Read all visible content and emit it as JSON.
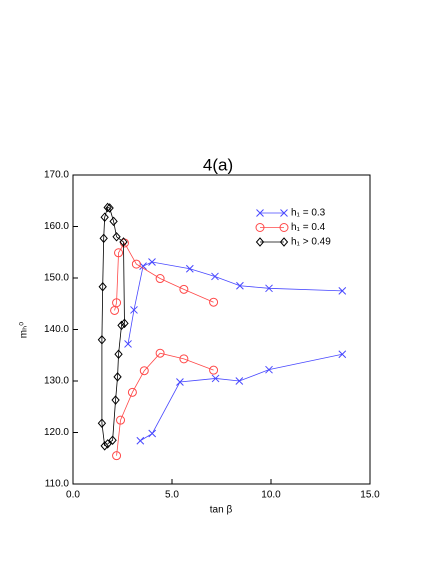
{
  "chart_data": {
    "type": "line",
    "title": "4(a)",
    "xlabel": "tan β",
    "ylabel": "mₕ⁰",
    "xlim": [
      0,
      15
    ],
    "ylim": [
      110,
      170
    ],
    "xticks": [
      {
        "value": 0,
        "label": "0.0"
      },
      {
        "value": 5,
        "label": "5.0"
      },
      {
        "value": 10,
        "label": "10.0"
      },
      {
        "value": 15,
        "label": "15.0"
      }
    ],
    "yticks": [
      {
        "value": 110,
        "label": "110.0"
      },
      {
        "value": 120,
        "label": "120.0"
      },
      {
        "value": 130,
        "label": "130.0"
      },
      {
        "value": 140,
        "label": "140.0"
      },
      {
        "value": 150,
        "label": "150.0"
      },
      {
        "value": 160,
        "label": "160.0"
      },
      {
        "value": 170,
        "label": "170.0"
      }
    ],
    "legend": "upper right",
    "series": [
      {
        "name": "h₁ = 0.3",
        "color": "#4848ff",
        "marker": "x",
        "x": [
          2.78,
          3.08,
          3.54,
          3.99,
          5.9,
          7.17,
          8.43,
          9.9,
          13.6,
          null,
          3.4,
          4.0,
          5.4,
          7.2,
          8.4,
          9.9,
          13.6
        ],
        "values": [
          137.2,
          143.8,
          152.3,
          153.1,
          151.8,
          150.3,
          148.5,
          148.0,
          147.5,
          null,
          118.4,
          119.8,
          129.8,
          130.5,
          130.0,
          132.2,
          135.2
        ]
      },
      {
        "name": "h₁ = 0.4",
        "color": "#ff4848",
        "marker": "o",
        "x": [
          2.1,
          2.2,
          2.3,
          2.6,
          3.2,
          4.4,
          5.6,
          7.1,
          null,
          2.2,
          2.4,
          3.0,
          3.6,
          4.4,
          5.6,
          7.1
        ],
        "values": [
          143.7,
          145.2,
          154.9,
          156.8,
          152.7,
          149.9,
          147.8,
          145.3,
          null,
          115.5,
          122.4,
          127.8,
          132.0,
          135.4,
          134.3,
          132.1
        ]
      },
      {
        "name": "h₁ > 0.49",
        "color": "#000000",
        "marker": "d",
        "x": [
          1.6,
          1.46,
          1.46,
          1.5,
          1.55,
          1.6,
          1.75,
          1.85,
          2.05,
          2.2,
          2.55,
          2.6,
          2.45,
          2.3,
          2.25,
          2.15,
          2.0,
          1.75
        ],
        "values": [
          117.4,
          121.8,
          138.0,
          148.3,
          157.7,
          161.8,
          163.7,
          163.6,
          161.0,
          158.0,
          157.0,
          141.2,
          140.8,
          135.2,
          130.8,
          126.3,
          118.5,
          117.8
        ]
      }
    ]
  }
}
